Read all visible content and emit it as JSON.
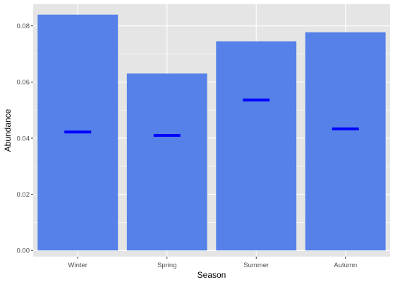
{
  "chart_data": {
    "type": "bar",
    "title": "",
    "xlabel": "Season",
    "ylabel": "Abundance",
    "categories": [
      "Winter",
      "Spring",
      "Summer",
      "Autumn"
    ],
    "series": [
      {
        "values": [
          0.084,
          0.063,
          0.0745,
          0.0777
        ]
      },
      {
        "mark": "crossbar",
        "values": [
          0.0422,
          0.041,
          0.0536,
          0.0433
        ]
      }
    ],
    "ylim": [
      -0.0022,
      0.0877
    ],
    "y_ticks": [
      0.0,
      0.02,
      0.04,
      0.06,
      0.08
    ],
    "y_tick_labels": [
      "0.00",
      "0.02",
      "0.04",
      "0.06",
      "0.08"
    ],
    "grid": true,
    "legend": "none",
    "colors": {
      "panel_background": "#e5e5e5",
      "grid_line": "#ffffff",
      "bar_fill": "#5581e9",
      "marker": "#0000ff"
    }
  }
}
